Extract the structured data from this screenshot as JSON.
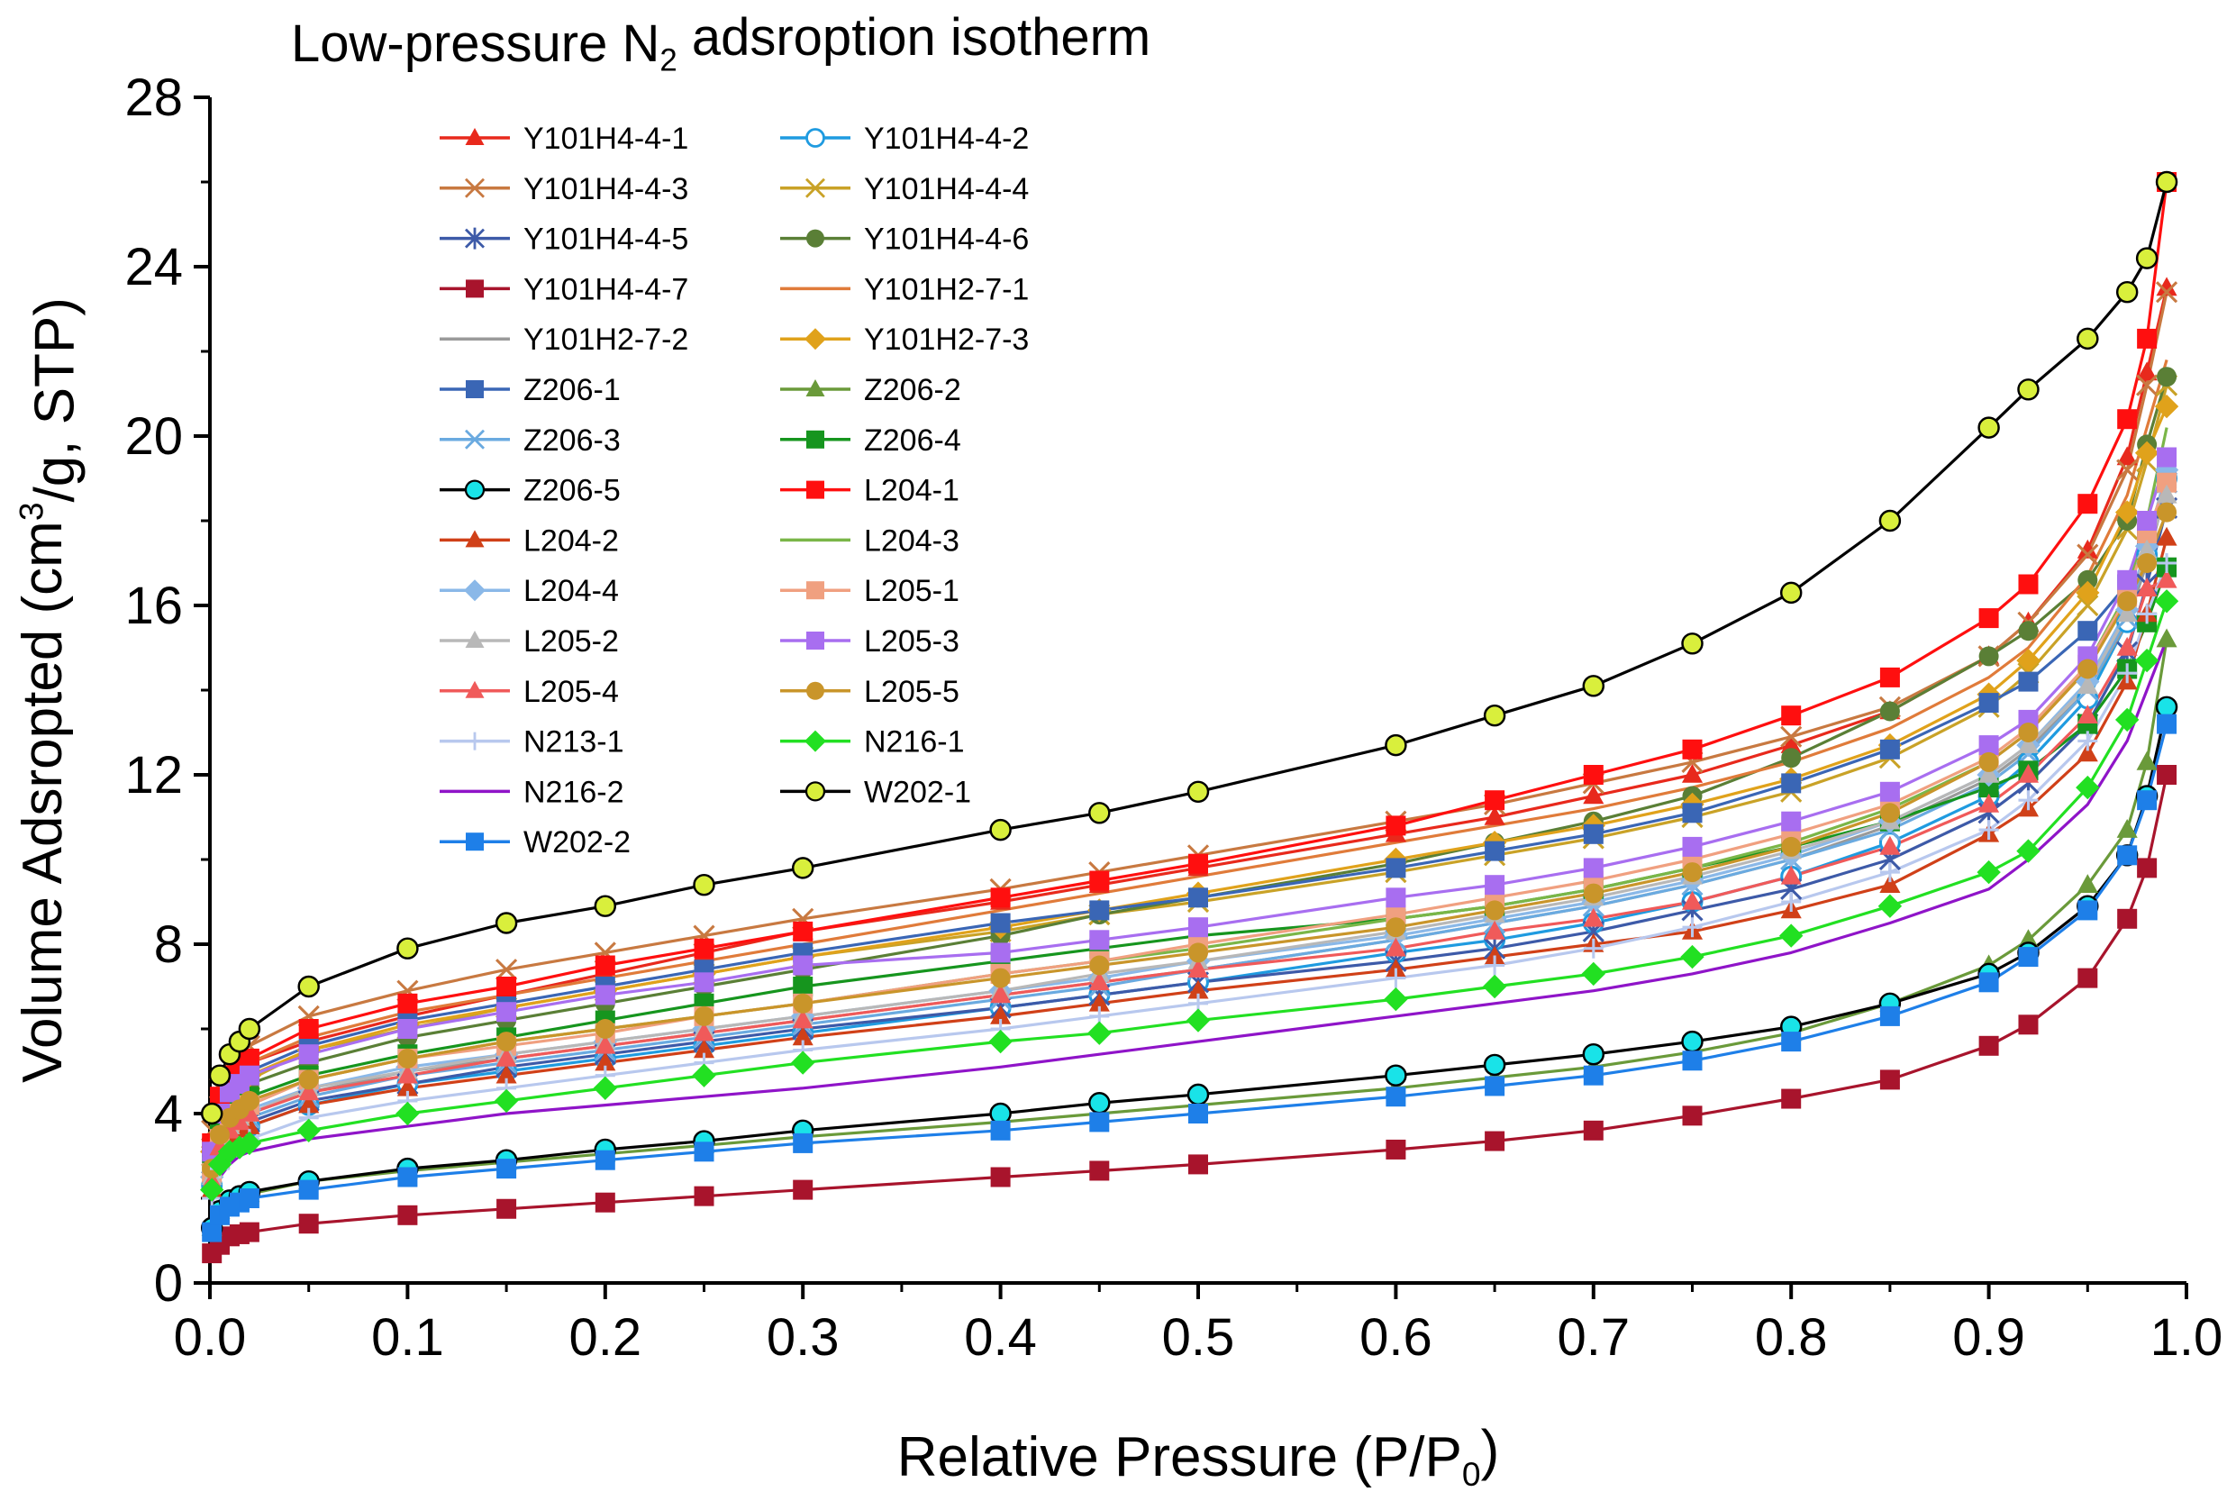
{
  "chart_data": {
    "type": "line",
    "title": "Low-pressure N2 adsroption isotherm",
    "title_parts": {
      "before": "Low-pressure N",
      "sub": "2",
      "after": " adsroption isotherm"
    },
    "xlabel": "Relative Pressure (P/P0)",
    "xlabel_parts": {
      "before": "Relative Pressure (P/P",
      "sub": "0",
      "after": ")"
    },
    "ylabel": "Volume Adsropted (cm3/g, STP)",
    "ylabel_parts": {
      "before": "Volume Adsropted (cm",
      "sup": "3",
      "after": "/g, STP)"
    },
    "xlim": [
      0.0,
      1.0
    ],
    "ylim": [
      0,
      28
    ],
    "xticks": [
      "0.0",
      "0.1",
      "0.2",
      "0.3",
      "0.4",
      "0.5",
      "0.6",
      "0.7",
      "0.8",
      "0.9",
      "1.0"
    ],
    "yticks": [
      "0",
      "4",
      "8",
      "12",
      "16",
      "20",
      "24",
      "28"
    ],
    "grid": false,
    "legend_position": "top-left",
    "x": [
      0.001,
      0.005,
      0.01,
      0.015,
      0.02,
      0.05,
      0.1,
      0.15,
      0.2,
      0.25,
      0.3,
      0.4,
      0.45,
      0.5,
      0.6,
      0.65,
      0.7,
      0.75,
      0.8,
      0.85,
      0.9,
      0.92,
      0.95,
      0.97,
      0.98,
      0.99
    ],
    "series": [
      {
        "name": "Y101H4-4-1",
        "color": "#e8291c",
        "marker": "triangle",
        "values": [
          3.4,
          4.3,
          4.8,
          5.0,
          5.2,
          5.7,
          6.3,
          6.8,
          7.3,
          7.8,
          8.3,
          9.0,
          9.4,
          9.8,
          10.6,
          11.0,
          11.5,
          12.0,
          12.7,
          13.5,
          14.8,
          15.6,
          17.3,
          19.5,
          21.5,
          23.5
        ]
      },
      {
        "name": "Y101H4-4-2",
        "color": "#1f9be0",
        "marker": "open-circle",
        "values": [
          2.3,
          3.0,
          3.3,
          3.5,
          3.7,
          4.2,
          4.7,
          5.0,
          5.3,
          5.6,
          5.9,
          6.5,
          6.8,
          7.1,
          7.8,
          8.1,
          8.5,
          9.0,
          9.6,
          10.4,
          11.5,
          12.3,
          13.8,
          15.6,
          17.2,
          19.0
        ]
      },
      {
        "name": "Y101H4-4-3",
        "color": "#c87941",
        "marker": "x",
        "values": [
          3.6,
          4.6,
          5.1,
          5.4,
          5.6,
          6.3,
          6.9,
          7.4,
          7.8,
          8.2,
          8.6,
          9.3,
          9.7,
          10.1,
          10.9,
          11.3,
          11.8,
          12.3,
          12.9,
          13.6,
          14.8,
          15.6,
          17.2,
          19.2,
          21.2,
          23.4
        ]
      },
      {
        "name": "Y101H4-4-4",
        "color": "#c9a227",
        "marker": "x",
        "values": [
          3.0,
          3.9,
          4.4,
          4.6,
          4.8,
          5.5,
          6.0,
          6.5,
          6.9,
          7.3,
          7.7,
          8.3,
          8.7,
          9.0,
          9.7,
          10.1,
          10.5,
          11.0,
          11.6,
          12.4,
          13.6,
          14.4,
          16.0,
          17.8,
          19.4,
          21.2
        ]
      },
      {
        "name": "Y101H4-4-5",
        "color": "#3d5aa8",
        "marker": "asterisk",
        "values": [
          2.4,
          3.1,
          3.4,
          3.6,
          3.8,
          4.3,
          4.7,
          5.1,
          5.4,
          5.7,
          6.0,
          6.5,
          6.8,
          7.1,
          7.6,
          7.9,
          8.3,
          8.8,
          9.3,
          10.0,
          11.1,
          11.8,
          13.2,
          14.9,
          16.5,
          18.3
        ]
      },
      {
        "name": "Y101H4-4-6",
        "color": "#5a7f36",
        "marker": "circle",
        "values": [
          2.9,
          3.8,
          4.3,
          4.5,
          4.7,
          5.2,
          5.8,
          6.2,
          6.6,
          7.0,
          7.4,
          8.2,
          8.7,
          9.1,
          9.9,
          10.4,
          10.9,
          11.5,
          12.4,
          13.5,
          14.8,
          15.4,
          16.6,
          18.0,
          19.8,
          21.4
        ]
      },
      {
        "name": "Y101H4-4-7",
        "color": "#a8142c",
        "marker": "square",
        "values": [
          0.7,
          0.9,
          1.1,
          1.15,
          1.2,
          1.4,
          1.6,
          1.75,
          1.9,
          2.05,
          2.2,
          2.5,
          2.65,
          2.8,
          3.15,
          3.35,
          3.6,
          3.95,
          4.35,
          4.8,
          5.6,
          6.1,
          7.2,
          8.6,
          9.8,
          12.0
        ]
      },
      {
        "name": "Y101H2-7-1",
        "color": "#e07b3a",
        "marker": "none",
        "values": [
          3.3,
          4.3,
          4.8,
          5.0,
          5.2,
          5.8,
          6.4,
          6.8,
          7.2,
          7.6,
          8.0,
          8.8,
          9.2,
          9.6,
          10.4,
          10.8,
          11.2,
          11.7,
          12.3,
          13.1,
          14.3,
          15.0,
          16.7,
          18.6,
          20.2,
          21.8
        ]
      },
      {
        "name": "Y101H2-7-2",
        "color": "#9a9a9a",
        "marker": "none",
        "values": [
          2.5,
          3.3,
          3.6,
          3.8,
          4.0,
          4.5,
          5.0,
          5.3,
          5.6,
          5.9,
          6.2,
          6.8,
          7.1,
          7.4,
          8.1,
          8.5,
          8.9,
          9.4,
          10.0,
          10.8,
          11.9,
          12.6,
          14.0,
          15.6,
          17.0,
          18.8
        ]
      },
      {
        "name": "Y101H2-7-3",
        "color": "#e0a21b",
        "marker": "diamond",
        "values": [
          3.1,
          4.0,
          4.5,
          4.7,
          4.9,
          5.5,
          6.1,
          6.5,
          6.9,
          7.3,
          7.7,
          8.4,
          8.8,
          9.2,
          10.0,
          10.4,
          10.8,
          11.3,
          11.9,
          12.7,
          13.9,
          14.7,
          16.3,
          18.2,
          19.6,
          20.7
        ]
      },
      {
        "name": "Z206-1",
        "color": "#3a66b5",
        "marker": "square",
        "values": [
          3.2,
          4.1,
          4.6,
          4.8,
          5.0,
          5.6,
          6.2,
          6.6,
          7.0,
          7.4,
          7.8,
          8.5,
          8.8,
          9.1,
          9.8,
          10.2,
          10.6,
          11.1,
          11.8,
          12.6,
          13.7,
          14.2,
          15.4,
          16.5,
          17.6,
          19.0
        ]
      },
      {
        "name": "Z206-2",
        "color": "#6a9a3a",
        "marker": "triangle",
        "values": [
          1.3,
          1.7,
          1.9,
          2.0,
          2.1,
          2.4,
          2.65,
          2.85,
          3.05,
          3.25,
          3.45,
          3.8,
          4.0,
          4.2,
          4.6,
          4.85,
          5.1,
          5.45,
          5.9,
          6.6,
          7.5,
          8.1,
          9.4,
          10.7,
          12.3,
          15.2
        ]
      },
      {
        "name": "Z206-3",
        "color": "#6aaae0",
        "marker": "x",
        "values": [
          2.4,
          3.2,
          3.5,
          3.7,
          3.9,
          4.4,
          4.9,
          5.2,
          5.5,
          5.8,
          6.1,
          6.7,
          7.0,
          7.4,
          8.1,
          8.5,
          8.9,
          9.4,
          10.0,
          10.7,
          11.8,
          12.5,
          14.0,
          15.7,
          17.2,
          18.9
        ]
      },
      {
        "name": "Z206-4",
        "color": "#16951e",
        "marker": "square",
        "values": [
          2.8,
          3.6,
          4.0,
          4.2,
          4.4,
          4.9,
          5.4,
          5.8,
          6.2,
          6.6,
          7.0,
          7.6,
          7.9,
          8.2,
          8.6,
          8.9,
          9.3,
          9.8,
          10.3,
          10.9,
          11.7,
          12.1,
          13.2,
          14.5,
          15.6,
          16.9
        ]
      },
      {
        "name": "Z206-5",
        "color": "#000000",
        "marker": "circle-cyan",
        "values": [
          1.3,
          1.7,
          1.95,
          2.05,
          2.15,
          2.4,
          2.7,
          2.9,
          3.15,
          3.35,
          3.6,
          4.0,
          4.25,
          4.45,
          4.9,
          5.15,
          5.4,
          5.7,
          6.05,
          6.6,
          7.3,
          7.8,
          8.9,
          10.1,
          11.5,
          13.6
        ]
      },
      {
        "name": "L204-1",
        "color": "#ff0f0f",
        "marker": "square",
        "values": [
          3.3,
          4.4,
          4.9,
          5.1,
          5.3,
          6.0,
          6.6,
          7.0,
          7.5,
          7.9,
          8.3,
          9.1,
          9.5,
          9.9,
          10.8,
          11.4,
          12.0,
          12.6,
          13.4,
          14.3,
          15.7,
          16.5,
          18.4,
          20.4,
          22.3,
          26.0
        ]
      },
      {
        "name": "L204-2",
        "color": "#d04018",
        "marker": "triangle",
        "values": [
          2.2,
          2.9,
          3.3,
          3.5,
          3.7,
          4.2,
          4.6,
          4.9,
          5.2,
          5.5,
          5.8,
          6.3,
          6.6,
          6.9,
          7.4,
          7.7,
          8.0,
          8.3,
          8.8,
          9.4,
          10.6,
          11.2,
          12.5,
          14.2,
          15.8,
          17.6
        ]
      },
      {
        "name": "L204-3",
        "color": "#7ab648",
        "marker": "none",
        "values": [
          2.7,
          3.5,
          3.9,
          4.1,
          4.3,
          4.8,
          5.3,
          5.7,
          6.0,
          6.3,
          6.6,
          7.3,
          7.6,
          7.9,
          8.6,
          8.9,
          9.3,
          9.8,
          10.4,
          11.2,
          12.3,
          13.0,
          14.6,
          16.3,
          18.0,
          20.2
        ]
      },
      {
        "name": "L204-4",
        "color": "#8ab8e8",
        "marker": "diamond",
        "values": [
          2.5,
          3.3,
          3.7,
          3.9,
          4.1,
          4.6,
          5.1,
          5.4,
          5.7,
          6.0,
          6.3,
          6.9,
          7.2,
          7.6,
          8.2,
          8.6,
          9.0,
          9.5,
          10.1,
          10.9,
          12.0,
          12.7,
          14.2,
          15.9,
          17.4,
          19.2
        ]
      },
      {
        "name": "L205-1",
        "color": "#f0a080",
        "marker": "square",
        "values": [
          2.6,
          3.4,
          3.8,
          4.0,
          4.2,
          4.8,
          5.3,
          5.6,
          5.9,
          6.3,
          6.6,
          7.3,
          7.6,
          8.0,
          8.7,
          9.1,
          9.5,
          10.0,
          10.6,
          11.3,
          12.4,
          13.1,
          14.6,
          16.2,
          17.7,
          18.9
        ]
      },
      {
        "name": "L205-2",
        "color": "#b8b8b8",
        "marker": "triangle",
        "values": [
          2.5,
          3.3,
          3.7,
          3.9,
          4.0,
          4.6,
          5.0,
          5.4,
          5.7,
          6.0,
          6.3,
          6.9,
          7.3,
          7.6,
          8.3,
          8.7,
          9.1,
          9.6,
          10.2,
          10.9,
          12.0,
          12.7,
          14.1,
          15.8,
          17.3,
          18.6
        ]
      },
      {
        "name": "L205-3",
        "color": "#a86ef0",
        "marker": "square",
        "values": [
          3.1,
          4.0,
          4.5,
          4.7,
          4.9,
          5.4,
          6.0,
          6.4,
          6.8,
          7.1,
          7.5,
          7.8,
          8.1,
          8.4,
          9.1,
          9.4,
          9.8,
          10.3,
          10.9,
          11.6,
          12.7,
          13.3,
          14.8,
          16.6,
          18.0,
          19.5
        ]
      },
      {
        "name": "L205-4",
        "color": "#f05a5a",
        "marker": "triangle",
        "values": [
          2.4,
          3.2,
          3.6,
          3.8,
          4.0,
          4.5,
          4.9,
          5.3,
          5.6,
          5.9,
          6.2,
          6.8,
          7.1,
          7.4,
          7.9,
          8.3,
          8.6,
          9.0,
          9.6,
          10.3,
          11.3,
          12.0,
          13.4,
          15.0,
          16.4,
          16.6
        ]
      },
      {
        "name": "L205-5",
        "color": "#c9952a",
        "marker": "circle",
        "values": [
          2.7,
          3.5,
          3.9,
          4.1,
          4.3,
          4.8,
          5.3,
          5.7,
          6.0,
          6.3,
          6.6,
          7.2,
          7.5,
          7.8,
          8.4,
          8.8,
          9.2,
          9.7,
          10.3,
          11.1,
          12.3,
          13.0,
          14.5,
          16.1,
          17.0,
          18.2
        ]
      },
      {
        "name": "N213-1",
        "color": "#b8c8ee",
        "marker": "plus",
        "values": [
          2.0,
          2.7,
          3.0,
          3.2,
          3.4,
          3.9,
          4.3,
          4.6,
          4.9,
          5.2,
          5.5,
          6.0,
          6.3,
          6.6,
          7.2,
          7.5,
          7.9,
          8.4,
          9.0,
          9.7,
          10.7,
          11.4,
          12.8,
          14.4,
          15.8,
          17.0
        ]
      },
      {
        "name": "N216-1",
        "color": "#22e022",
        "marker": "diamond",
        "values": [
          2.2,
          2.8,
          3.1,
          3.2,
          3.3,
          3.6,
          4.0,
          4.3,
          4.6,
          4.9,
          5.2,
          5.7,
          5.9,
          6.2,
          6.7,
          7.0,
          7.3,
          7.7,
          8.2,
          8.9,
          9.7,
          10.2,
          11.7,
          13.3,
          14.7,
          16.1
        ]
      },
      {
        "name": "N216-2",
        "color": "#8f14c8",
        "marker": "none",
        "values": [
          1.9,
          2.5,
          2.8,
          3.0,
          3.1,
          3.4,
          3.7,
          4.0,
          4.2,
          4.4,
          4.6,
          5.1,
          5.4,
          5.7,
          6.3,
          6.6,
          6.9,
          7.3,
          7.8,
          8.5,
          9.3,
          10.0,
          11.3,
          12.8,
          14.0,
          15.2
        ]
      },
      {
        "name": "W202-1",
        "color": "#000000",
        "marker": "circle-yellow",
        "values": [
          4.0,
          4.9,
          5.4,
          5.7,
          6.0,
          7.0,
          7.9,
          8.5,
          8.9,
          9.4,
          9.8,
          10.7,
          11.1,
          11.6,
          12.7,
          13.4,
          14.1,
          15.1,
          16.3,
          18.0,
          20.2,
          21.1,
          22.3,
          23.4,
          24.2,
          26.0
        ]
      },
      {
        "name": "W202-2",
        "color": "#1e7fe8",
        "marker": "square",
        "values": [
          1.2,
          1.6,
          1.8,
          1.9,
          2.0,
          2.2,
          2.5,
          2.7,
          2.9,
          3.1,
          3.3,
          3.6,
          3.8,
          4.0,
          4.4,
          4.65,
          4.9,
          5.25,
          5.7,
          6.3,
          7.1,
          7.7,
          8.8,
          10.1,
          11.4,
          13.2
        ]
      }
    ]
  }
}
